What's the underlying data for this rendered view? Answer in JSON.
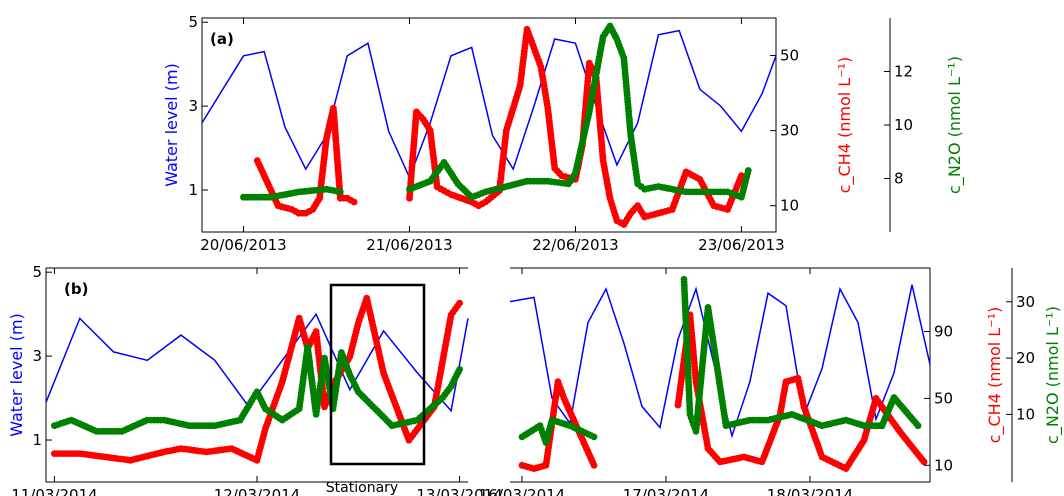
{
  "colors": {
    "water": "#0000ff",
    "ch4": "#ff0000",
    "n2o": "#008000",
    "axis": "#000000"
  },
  "chart_data": [
    {
      "panel_label": "(a)",
      "type": "line",
      "xlim": [
        "2013-06-19T18:00",
        "2013-06-23T05:00"
      ],
      "x_ticks": [
        "20/06/2013",
        "21/06/2013",
        "22/06/2013",
        "23/06/2013"
      ],
      "ylabel_left": "Water level (m)",
      "ylim_left": [
        0,
        5.1
      ],
      "y_ticks_left": [
        "1",
        "3",
        "5"
      ],
      "ylabel_right1": "c_CH4 (nmol L⁻¹)",
      "ylim_right1": [
        3,
        60
      ],
      "y_ticks_right1": [
        "10",
        "30",
        "50"
      ],
      "ylabel_right2": "c_N2O (nmol L⁻¹)",
      "ylim_right2": [
        6,
        14
      ],
      "y_ticks_right2": [
        "8",
        "10",
        "12"
      ],
      "series": [
        {
          "key": "water",
          "kind": "line",
          "x": [
            "2013-06-19T18:00",
            "2013-06-20T00:00",
            "2013-06-20T03:00",
            "2013-06-20T06:00",
            "2013-06-20T09:00",
            "2013-06-20T12:00",
            "2013-06-20T15:00",
            "2013-06-20T18:00",
            "2013-06-20T21:00",
            "2013-06-21T00:00",
            "2013-06-21T03:00",
            "2013-06-21T06:00",
            "2013-06-21T09:00",
            "2013-06-21T12:00",
            "2013-06-21T15:00",
            "2013-06-21T18:00",
            "2013-06-21T21:00",
            "2013-06-22T00:00",
            "2013-06-22T03:00",
            "2013-06-22T06:00",
            "2013-06-22T09:00",
            "2013-06-22T12:00",
            "2013-06-22T15:00",
            "2013-06-22T18:00",
            "2013-06-22T21:00",
            "2013-06-23T00:00",
            "2013-06-23T03:00",
            "2013-06-23T05:00"
          ],
          "y": [
            2.6,
            4.2,
            4.3,
            2.5,
            1.5,
            2.3,
            4.2,
            4.5,
            2.4,
            1.3,
            2.6,
            4.2,
            4.4,
            2.3,
            1.5,
            3.0,
            4.6,
            4.5,
            3.0,
            1.6,
            2.6,
            4.7,
            4.8,
            3.4,
            3.0,
            2.4,
            3.3,
            4.2
          ]
        },
        {
          "key": "ch4",
          "kind": "scatter",
          "axis": "right1",
          "x": [
            "2013-06-20T02:00",
            "2013-06-20T05:00",
            "2013-06-20T07:00",
            "2013-06-20T08:00",
            "2013-06-20T09:00",
            "2013-06-20T10:00",
            "2013-06-20T11:00",
            "2013-06-20T12:00",
            "2013-06-20T13:00",
            "2013-06-20T14:00",
            "2013-06-20T15:00",
            "2013-06-20T16:00",
            "2013-06-21T00:00",
            "2013-06-21T01:00",
            "2013-06-21T02:00",
            "2013-06-21T03:00",
            "2013-06-21T04:00",
            "2013-06-21T05:00",
            "2013-06-21T06:00",
            "2013-06-21T09:00",
            "2013-06-21T10:00",
            "2013-06-21T11:00",
            "2013-06-21T13:00",
            "2013-06-21T14:00",
            "2013-06-21T16:00",
            "2013-06-21T17:00",
            "2013-06-21T18:00",
            "2013-06-21T19:00",
            "2013-06-21T20:00",
            "2013-06-21T21:00",
            "2013-06-21T22:00",
            "2013-06-22T00:00",
            "2013-06-22T01:00",
            "2013-06-22T02:00",
            "2013-06-22T03:00",
            "2013-06-22T04:00",
            "2013-06-22T05:00",
            "2013-06-22T06:00",
            "2013-06-22T07:00",
            "2013-06-22T08:00",
            "2013-06-22T09:00",
            "2013-06-22T10:00",
            "2013-06-22T12:00",
            "2013-06-22T14:00",
            "2013-06-22T16:00",
            "2013-06-22T18:00",
            "2013-06-22T20:00",
            "2013-06-22T22:00",
            "2013-06-23T00:00"
          ],
          "y": [
            22,
            10,
            9,
            8,
            8,
            9,
            12,
            28,
            36,
            12,
            12,
            11,
            12,
            35,
            33,
            30,
            15,
            14,
            13,
            11,
            10,
            11,
            14,
            30,
            42,
            57,
            52,
            47,
            36,
            20,
            18,
            17,
            26,
            48,
            44,
            22,
            12,
            6,
            5,
            8,
            10,
            7,
            8,
            9,
            19,
            17,
            10,
            9,
            18
          ]
        },
        {
          "key": "n2o",
          "kind": "scatter",
          "axis": "right2",
          "x": [
            "2013-06-20T00:00",
            "2013-06-20T04:00",
            "2013-06-20T08:00",
            "2013-06-20T12:00",
            "2013-06-20T14:00",
            "2013-06-21T00:00",
            "2013-06-21T03:00",
            "2013-06-21T05:00",
            "2013-06-21T07:00",
            "2013-06-21T09:00",
            "2013-06-21T11:00",
            "2013-06-21T14:00",
            "2013-06-21T17:00",
            "2013-06-21T20:00",
            "2013-06-21T23:00",
            "2013-06-22T00:00",
            "2013-06-22T02:00",
            "2013-06-22T04:00",
            "2013-06-22T05:00",
            "2013-06-22T06:00",
            "2013-06-22T07:00",
            "2013-06-22T08:00",
            "2013-06-22T09:00",
            "2013-06-22T10:00",
            "2013-06-22T12:00",
            "2013-06-22T16:00",
            "2013-06-22T19:00",
            "2013-06-22T22:00",
            "2013-06-23T00:00",
            "2013-06-23T01:00"
          ],
          "y": [
            7.3,
            7.3,
            7.5,
            7.6,
            7.5,
            7.6,
            7.9,
            8.6,
            7.8,
            7.3,
            7.5,
            7.7,
            7.9,
            7.9,
            7.8,
            8.2,
            10.5,
            13.3,
            13.7,
            13.2,
            12.5,
            9.6,
            7.8,
            7.6,
            7.7,
            7.5,
            7.5,
            7.5,
            7.3,
            8.3
          ]
        }
      ]
    },
    {
      "panel_label": "(b)",
      "type": "line",
      "annotation": "Stationary",
      "segments": [
        {
          "xlim": [
            "2014-03-10T23:00",
            "2014-03-13T01:00"
          ],
          "x_ticks": [
            "11/03/2014",
            "12/03/2014",
            "13/03/2014"
          ]
        },
        {
          "xlim": [
            "2014-03-15T22:00",
            "2014-03-18T20:00"
          ],
          "x_ticks": [
            "16/03/2014",
            "17/03/2014",
            "18/03/2014"
          ]
        }
      ],
      "ylabel_left": "Water level (m)",
      "ylim_left": [
        0,
        5.1
      ],
      "y_ticks_left": [
        "1",
        "3",
        "5"
      ],
      "ylabel_right1": "c_CH4 (nmol L⁻¹)",
      "ylim_right1": [
        0,
        128
      ],
      "y_ticks_right1": [
        "10",
        "50",
        "90"
      ],
      "ylabel_right2": "c_N2O (nmol L⁻¹)",
      "ylim_right2": [
        -2,
        36
      ],
      "y_ticks_right2": [
        "10",
        "20",
        "30"
      ],
      "series": [
        {
          "key": "water",
          "kind": "line",
          "x": [
            "2014-03-10T23:00",
            "2014-03-11T03:00",
            "2014-03-11T07:00",
            "2014-03-11T11:00",
            "2014-03-11T15:00",
            "2014-03-11T19:00",
            "2014-03-11T23:00",
            "2014-03-12T03:00",
            "2014-03-12T07:00",
            "2014-03-12T11:00",
            "2014-03-12T15:00",
            "2014-03-12T19:00",
            "2014-03-12T23:00",
            "2014-03-13T01:00",
            null,
            "2014-03-15T22:00",
            "2014-03-16T02:00",
            "2014-03-16T05:00",
            "2014-03-16T08:00",
            "2014-03-16T11:00",
            "2014-03-16T14:00",
            "2014-03-16T17:00",
            "2014-03-16T20:00",
            "2014-03-16T23:00",
            "2014-03-17T02:00",
            "2014-03-17T05:00",
            "2014-03-17T08:00",
            "2014-03-17T11:00",
            "2014-03-17T14:00",
            "2014-03-17T17:00",
            "2014-03-17T20:00",
            "2014-03-17T23:00",
            "2014-03-18T02:00",
            "2014-03-18T05:00",
            "2014-03-18T08:00",
            "2014-03-18T11:00",
            "2014-03-18T14:00",
            "2014-03-18T17:00",
            "2014-03-18T20:00"
          ],
          "y": [
            1.9,
            3.9,
            3.1,
            2.9,
            3.5,
            2.9,
            1.8,
            2.9,
            4.0,
            2.2,
            3.6,
            2.6,
            1.7,
            3.9,
            null,
            4.3,
            4.4,
            2.0,
            1.4,
            3.8,
            4.6,
            3.3,
            1.8,
            1.3,
            3.4,
            4.6,
            2.8,
            1.1,
            2.4,
            4.5,
            4.2,
            1.6,
            2.7,
            4.6,
            3.8,
            1.5,
            2.6,
            4.7,
            2.8
          ]
        },
        {
          "key": "ch4",
          "kind": "scatter",
          "axis": "right1",
          "x": [
            "2014-03-11T00:00",
            "2014-03-11T03:00",
            "2014-03-11T06:00",
            "2014-03-11T09:00",
            "2014-03-11T13:00",
            "2014-03-11T15:00",
            "2014-03-11T18:00",
            "2014-03-11T21:00",
            "2014-03-12T00:00",
            "2014-03-12T01:00",
            "2014-03-12T03:00",
            "2014-03-12T05:00",
            "2014-03-12T06:00",
            "2014-03-12T07:00",
            "2014-03-12T08:00",
            "2014-03-12T09:00",
            "2014-03-12T11:00",
            "2014-03-12T12:00",
            "2014-03-12T13:00",
            "2014-03-12T15:00",
            "2014-03-12T18:00",
            "2014-03-12T21:00",
            "2014-03-12T23:00",
            "2014-03-13T00:00",
            null,
            "2014-03-16T00:00",
            "2014-03-16T02:00",
            "2014-03-16T04:00",
            "2014-03-16T06:00",
            "2014-03-16T07:00",
            "2014-03-16T12:00",
            "2014-03-17T02:00",
            "2014-03-17T04:00",
            "2014-03-17T05:00",
            "2014-03-17T07:00",
            "2014-03-17T09:00",
            "2014-03-17T13:00",
            "2014-03-17T16:00",
            "2014-03-17T19:00",
            "2014-03-17T20:00",
            "2014-03-17T22:00",
            "2014-03-17T23:00",
            "2014-03-18T02:00",
            "2014-03-18T06:00",
            "2014-03-18T09:00",
            "2014-03-18T11:00",
            "2014-03-18T15:00",
            "2014-03-18T19:00"
          ],
          "y": [
            17,
            17,
            15,
            13,
            18,
            20,
            18,
            20,
            13,
            32,
            60,
            98,
            80,
            90,
            45,
            58,
            75,
            95,
            110,
            65,
            25,
            45,
            100,
            107,
            null,
            10,
            8,
            10,
            60,
            50,
            10,
            46,
            100,
            60,
            20,
            12,
            15,
            12,
            40,
            60,
            62,
            45,
            15,
            8,
            25,
            50,
            30,
            12
          ]
        },
        {
          "key": "n2o",
          "kind": "scatter",
          "axis": "right2",
          "x": [
            "2014-03-11T00:00",
            "2014-03-11T02:00",
            "2014-03-11T05:00",
            "2014-03-11T08:00",
            "2014-03-11T11:00",
            "2014-03-11T13:00",
            "2014-03-11T16:00",
            "2014-03-11T19:00",
            "2014-03-11T22:00",
            "2014-03-12T00:00",
            "2014-03-12T01:00",
            "2014-03-12T02:00",
            "2014-03-12T03:00",
            "2014-03-12T05:00",
            "2014-03-12T06:00",
            "2014-03-12T07:00",
            "2014-03-12T08:00",
            "2014-03-12T09:00",
            "2014-03-12T10:00",
            "2014-03-12T11:00",
            "2014-03-12T12:00",
            "2014-03-12T14:00",
            "2014-03-12T16:00",
            "2014-03-12T19:00",
            "2014-03-12T22:00",
            "2014-03-12T23:00",
            "2014-03-13T00:00",
            null,
            "2014-03-16T00:00",
            "2014-03-16T03:00",
            "2014-03-16T04:00",
            "2014-03-16T05:00",
            "2014-03-16T08:00",
            "2014-03-16T12:00",
            "2014-03-17T03:00",
            "2014-03-17T04:00",
            "2014-03-17T05:00",
            "2014-03-17T07:00",
            "2014-03-17T10:00",
            "2014-03-17T14:00",
            "2014-03-17T17:00",
            "2014-03-17T21:00",
            "2014-03-18T02:00",
            "2014-03-18T06:00",
            "2014-03-18T09:00",
            "2014-03-18T12:00",
            "2014-03-18T14:00",
            "2014-03-18T18:00"
          ],
          "y": [
            8,
            9,
            7,
            7,
            9,
            9,
            8,
            8,
            9,
            14,
            11,
            10,
            9,
            11,
            22,
            10,
            20,
            11,
            21,
            17,
            14,
            11,
            8,
            9,
            13,
            15,
            18,
            null,
            6,
            8,
            5,
            9,
            8,
            6,
            34,
            10,
            7,
            29,
            8,
            9,
            9,
            10,
            8,
            9,
            8,
            8,
            13,
            8
          ]
        }
      ]
    }
  ]
}
